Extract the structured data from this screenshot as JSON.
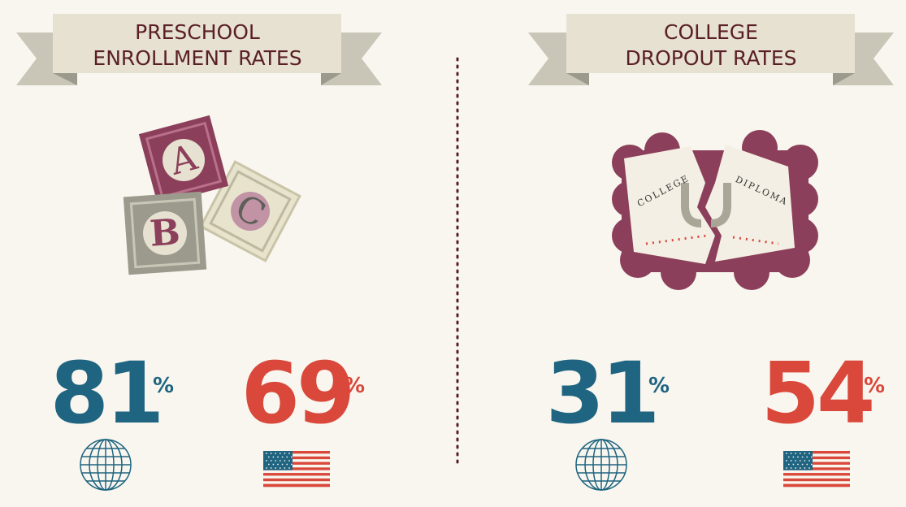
{
  "panels": [
    {
      "title": [
        "PRESCHOOL",
        "ENROLLMENT RATES"
      ],
      "blocks": [
        "A",
        "B",
        "C"
      ],
      "stats": [
        {
          "value": 81,
          "unit": "%"
        },
        {
          "value": 69,
          "unit": "%"
        }
      ]
    },
    {
      "title": [
        "COLLEGE",
        "DROPOUT RATES"
      ],
      "diploma": [
        "COLLEGE",
        "DIPLOMA"
      ],
      "stats": [
        {
          "value": 31,
          "unit": "%"
        },
        {
          "value": 54,
          "unit": "%"
        }
      ]
    }
  ]
}
